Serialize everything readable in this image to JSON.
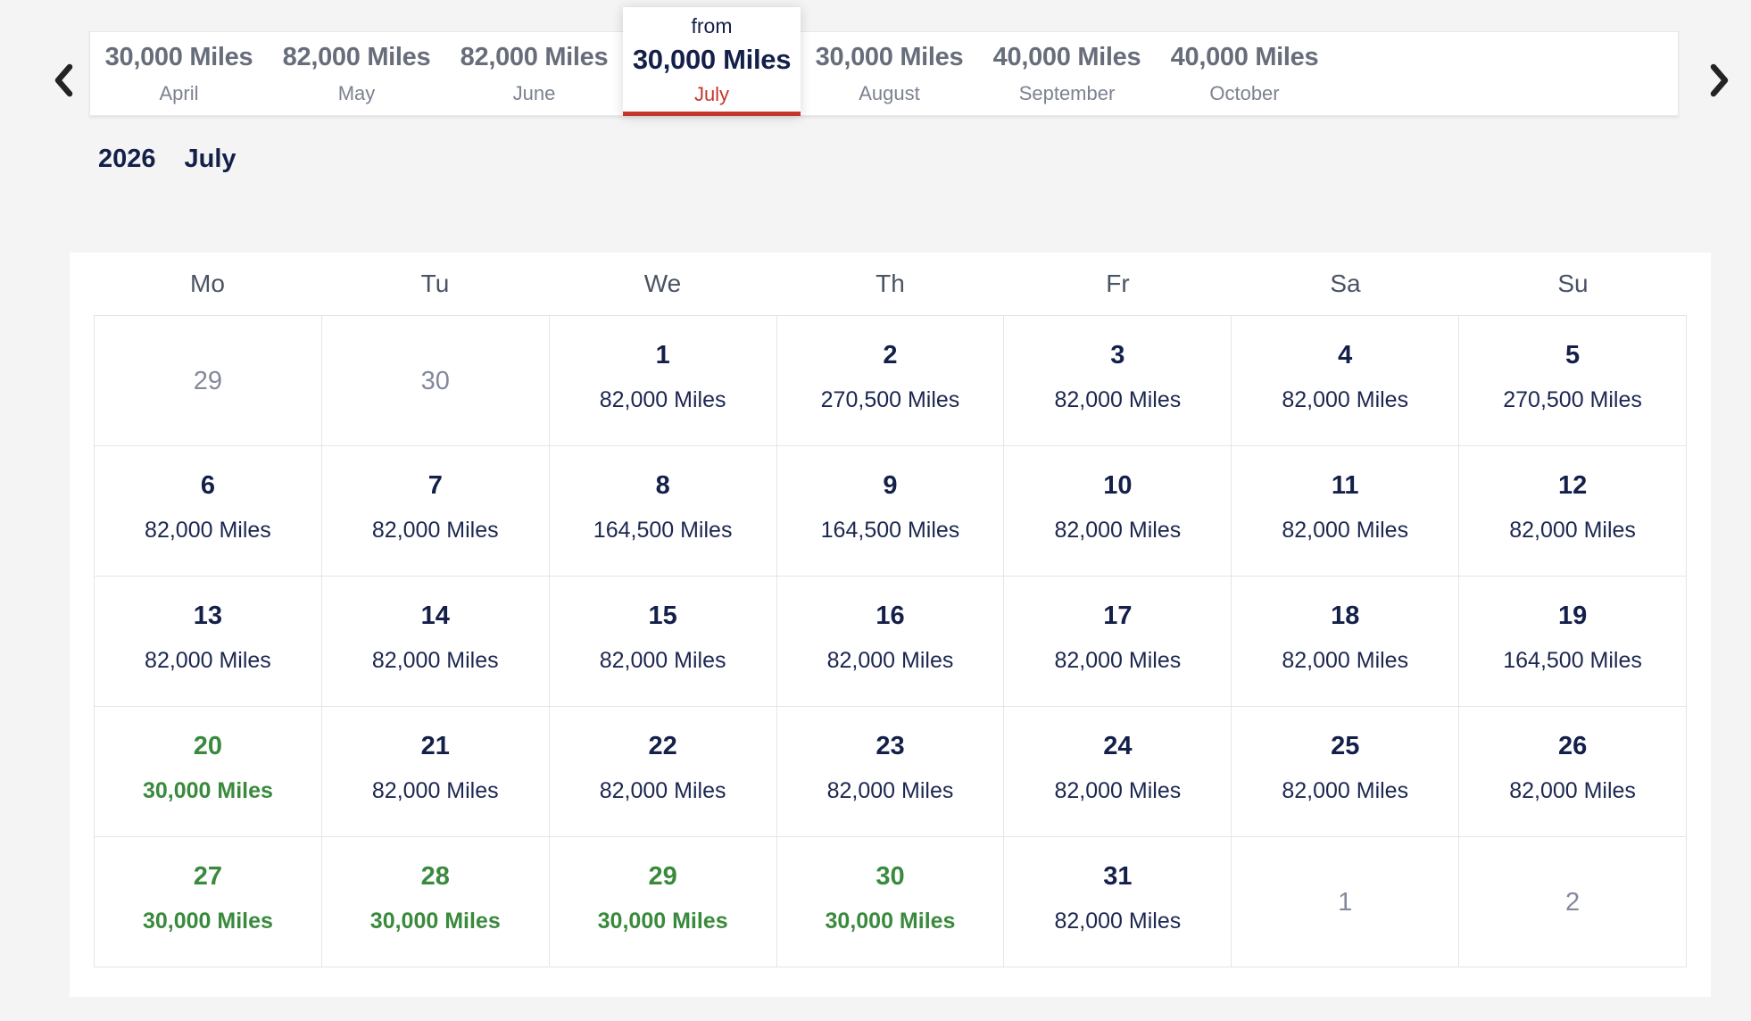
{
  "carousel": {
    "prev_button": "previous-months",
    "next_button": "next-months",
    "months": [
      {
        "miles": "30,000 Miles",
        "month": "April",
        "selected": false
      },
      {
        "miles": "82,000 Miles",
        "month": "May",
        "selected": false
      },
      {
        "miles": "82,000 Miles",
        "month": "June",
        "selected": false
      },
      {
        "prefix": "from",
        "miles": "30,000 Miles",
        "month": "July",
        "selected": true
      },
      {
        "miles": "30,000 Miles",
        "month": "August",
        "selected": false
      },
      {
        "miles": "40,000 Miles",
        "month": "September",
        "selected": false
      },
      {
        "miles": "40,000 Miles",
        "month": "October",
        "selected": false
      }
    ]
  },
  "heading": {
    "year": "2026",
    "month": "July"
  },
  "calendar": {
    "weekdays": [
      "Mo",
      "Tu",
      "We",
      "Th",
      "Fr",
      "Sa",
      "Su"
    ],
    "weeks": [
      [
        {
          "day": "29",
          "state": "muted"
        },
        {
          "day": "30",
          "state": "muted"
        },
        {
          "day": "1",
          "miles": "82,000 Miles",
          "state": "default"
        },
        {
          "day": "2",
          "miles": "270,500 Miles",
          "state": "default"
        },
        {
          "day": "3",
          "miles": "82,000 Miles",
          "state": "default"
        },
        {
          "day": "4",
          "miles": "82,000 Miles",
          "state": "default"
        },
        {
          "day": "5",
          "miles": "270,500 Miles",
          "state": "default"
        }
      ],
      [
        {
          "day": "6",
          "miles": "82,000 Miles",
          "state": "default"
        },
        {
          "day": "7",
          "miles": "82,000 Miles",
          "state": "default"
        },
        {
          "day": "8",
          "miles": "164,500 Miles",
          "state": "default"
        },
        {
          "day": "9",
          "miles": "164,500 Miles",
          "state": "default"
        },
        {
          "day": "10",
          "miles": "82,000 Miles",
          "state": "default"
        },
        {
          "day": "11",
          "miles": "82,000 Miles",
          "state": "default"
        },
        {
          "day": "12",
          "miles": "82,000 Miles",
          "state": "default"
        }
      ],
      [
        {
          "day": "13",
          "miles": "82,000 Miles",
          "state": "default"
        },
        {
          "day": "14",
          "miles": "82,000 Miles",
          "state": "default"
        },
        {
          "day": "15",
          "miles": "82,000 Miles",
          "state": "default"
        },
        {
          "day": "16",
          "miles": "82,000 Miles",
          "state": "default"
        },
        {
          "day": "17",
          "miles": "82,000 Miles",
          "state": "default"
        },
        {
          "day": "18",
          "miles": "82,000 Miles",
          "state": "default"
        },
        {
          "day": "19",
          "miles": "164,500 Miles",
          "state": "default"
        }
      ],
      [
        {
          "day": "20",
          "miles": "30,000 Miles",
          "state": "available"
        },
        {
          "day": "21",
          "miles": "82,000 Miles",
          "state": "default"
        },
        {
          "day": "22",
          "miles": "82,000 Miles",
          "state": "default"
        },
        {
          "day": "23",
          "miles": "82,000 Miles",
          "state": "default"
        },
        {
          "day": "24",
          "miles": "82,000 Miles",
          "state": "default"
        },
        {
          "day": "25",
          "miles": "82,000 Miles",
          "state": "default"
        },
        {
          "day": "26",
          "miles": "82,000 Miles",
          "state": "default"
        }
      ],
      [
        {
          "day": "27",
          "miles": "30,000 Miles",
          "state": "available"
        },
        {
          "day": "28",
          "miles": "30,000 Miles",
          "state": "available"
        },
        {
          "day": "29",
          "miles": "30,000 Miles",
          "state": "available"
        },
        {
          "day": "30",
          "miles": "30,000 Miles",
          "state": "available"
        },
        {
          "day": "31",
          "miles": "82,000 Miles",
          "state": "default"
        },
        {
          "day": "1",
          "state": "muted"
        },
        {
          "day": "2",
          "state": "muted"
        }
      ]
    ]
  },
  "colors": {
    "accent_red": "#c4362b",
    "available_green": "#3a8a3d",
    "navy_text": "#14204a",
    "muted_gray": "#84889c",
    "carousel_gray": "#676d7a",
    "page_background": "#f4f4f5",
    "grid_border": "#e4e5e7"
  }
}
